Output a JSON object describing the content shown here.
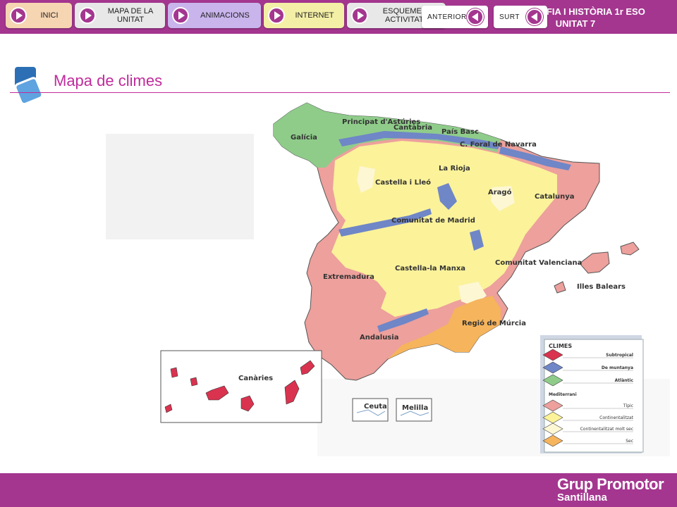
{
  "header": {
    "nav": [
      {
        "label": "INICI"
      },
      {
        "label": "MAPA DE LA UNITAT"
      },
      {
        "label": "ANIMACIONS"
      },
      {
        "label": "INTERNET"
      },
      {
        "label": "ESQUEMES I ACTIVITATS"
      }
    ],
    "course_title": "GEOGRAFIA I HISTÒRIA 1r ESO",
    "unit": "UNITAT 7"
  },
  "main": {
    "title": "Mapa de climes",
    "map": {
      "regions": [
        "Principat d'Astúries",
        "Cantàbria",
        "País Basc",
        "Galícia",
        "C. Foral de Navarra",
        "La Rioja",
        "Castella i Lleó",
        "Aragó",
        "Catalunya",
        "Comunitat de Madrid",
        "Castella-la Manxa",
        "Comunitat Valenciana",
        "Illes Balears",
        "Extremadura",
        "Regió de Múrcia",
        "Andalusia",
        "Canàries",
        "Ceuta",
        "Melilla"
      ],
      "legend": {
        "title": "CLIMES",
        "items": [
          "Subtropical",
          "De muntanya",
          "Atlàntic"
        ],
        "group_title": "Mediterrani",
        "med_items": [
          "Típic",
          "Continentalitzat",
          "Continentalitzat molt sec",
          "Sec"
        ]
      },
      "colors": {
        "atlantic": "#8fcc8a",
        "mountain": "#6f86c7",
        "subtropical": "#d9334f",
        "med_typical": "#eda09c",
        "med_continental": "#fbf29a",
        "med_very_dry": "#fdf7d4",
        "med_dry": "#f6b45c"
      }
    }
  },
  "footer": {
    "prev_label": "ANTERIOR",
    "exit_label": "SURT",
    "brand_line1": "Grup Promotor",
    "brand_line2": "Santillana"
  }
}
